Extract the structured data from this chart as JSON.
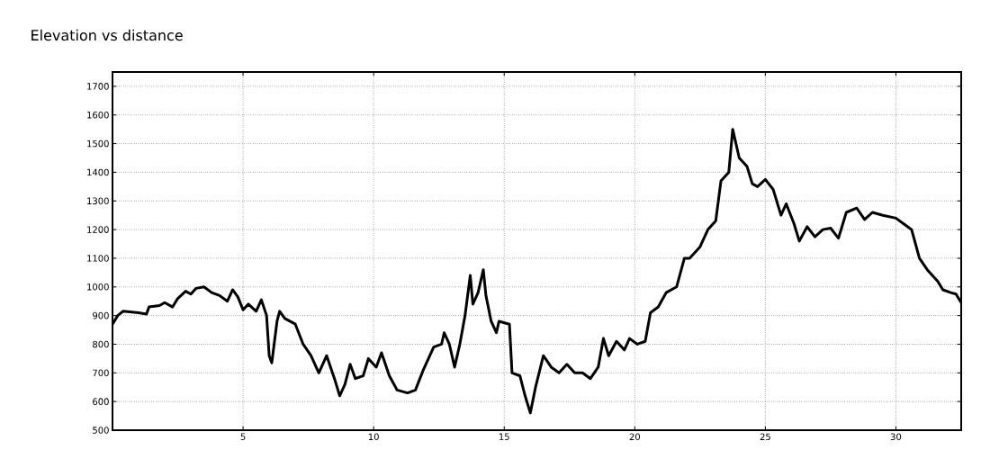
{
  "chart_data": {
    "type": "line",
    "title": "Elevation vs distance",
    "x": [
      0,
      0.2,
      0.4,
      1.0,
      1.3,
      1.4,
      1.8,
      2.0,
      2.3,
      2.5,
      2.8,
      3.0,
      3.2,
      3.5,
      3.8,
      4.1,
      4.4,
      4.6,
      4.8,
      5.0,
      5.2,
      5.5,
      5.7,
      5.9,
      6.0,
      6.1,
      6.3,
      6.4,
      6.6,
      7.0,
      7.3,
      7.6,
      7.9,
      8.2,
      8.5,
      8.7,
      8.9,
      9.1,
      9.3,
      9.6,
      9.8,
      10.1,
      10.3,
      10.6,
      10.9,
      11.3,
      11.6,
      11.9,
      12.3,
      12.6,
      12.7,
      12.9,
      13.1,
      13.3,
      13.5,
      13.7,
      13.8,
      14.0,
      14.2,
      14.3,
      14.5,
      14.7,
      14.8,
      15.2,
      15.3,
      15.6,
      15.8,
      16.0,
      16.2,
      16.5,
      16.8,
      17.1,
      17.4,
      17.7,
      18.0,
      18.3,
      18.6,
      18.8,
      19.0,
      19.3,
      19.6,
      19.8,
      20.1,
      20.4,
      20.6,
      20.9,
      21.2,
      21.6,
      21.9,
      22.1,
      22.5,
      22.8,
      23.1,
      23.3,
      23.6,
      23.75,
      24.0,
      24.3,
      24.5,
      24.7,
      25.0,
      25.3,
      25.6,
      25.8,
      26.1,
      26.3,
      26.6,
      26.9,
      27.2,
      27.5,
      27.8,
      28.1,
      28.5,
      28.8,
      29.1,
      29.5,
      30.0,
      30.3,
      30.6,
      30.9,
      31.2,
      31.6,
      31.8,
      32.1,
      32.3,
      32.5
    ],
    "values": [
      870,
      900,
      915,
      910,
      905,
      930,
      935,
      945,
      930,
      960,
      985,
      975,
      995,
      1000,
      980,
      970,
      950,
      990,
      965,
      920,
      940,
      915,
      955,
      900,
      760,
      735,
      880,
      915,
      890,
      870,
      800,
      760,
      700,
      760,
      680,
      620,
      660,
      730,
      680,
      690,
      750,
      720,
      770,
      690,
      640,
      630,
      640,
      710,
      790,
      800,
      840,
      800,
      720,
      800,
      900,
      1040,
      940,
      980,
      1060,
      970,
      880,
      840,
      880,
      870,
      700,
      690,
      620,
      560,
      650,
      760,
      720,
      700,
      730,
      700,
      700,
      680,
      720,
      820,
      760,
      810,
      780,
      820,
      800,
      810,
      910,
      930,
      980,
      1000,
      1100,
      1100,
      1140,
      1200,
      1230,
      1370,
      1400,
      1550,
      1450,
      1420,
      1360,
      1350,
      1375,
      1340,
      1250,
      1290,
      1220,
      1160,
      1210,
      1175,
      1200,
      1205,
      1170,
      1260,
      1275,
      1235,
      1260,
      1250,
      1240,
      1220,
      1200,
      1100,
      1060,
      1020,
      990,
      980,
      975,
      945
    ],
    "color": "#000000",
    "xlim": [
      0,
      32.5
    ],
    "ylim": [
      500,
      1750
    ],
    "xticks": [
      5,
      10,
      15,
      20,
      25,
      30
    ],
    "yticks": [
      500,
      600,
      700,
      800,
      900,
      1000,
      1100,
      1200,
      1300,
      1400,
      1500,
      1600,
      1700
    ],
    "grid": true,
    "marker": "none",
    "line_style": "solid"
  }
}
